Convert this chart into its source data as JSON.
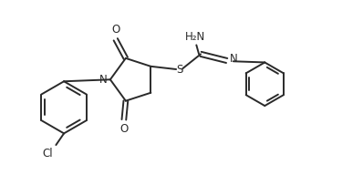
{
  "bg_color": "#ffffff",
  "line_color": "#2a2a2a",
  "line_width": 1.4,
  "font_size": 8.5,
  "figsize": [
    3.98,
    1.92
  ],
  "dpi": 100,
  "xlim": [
    0,
    10
  ],
  "ylim": [
    0,
    4.8
  ]
}
